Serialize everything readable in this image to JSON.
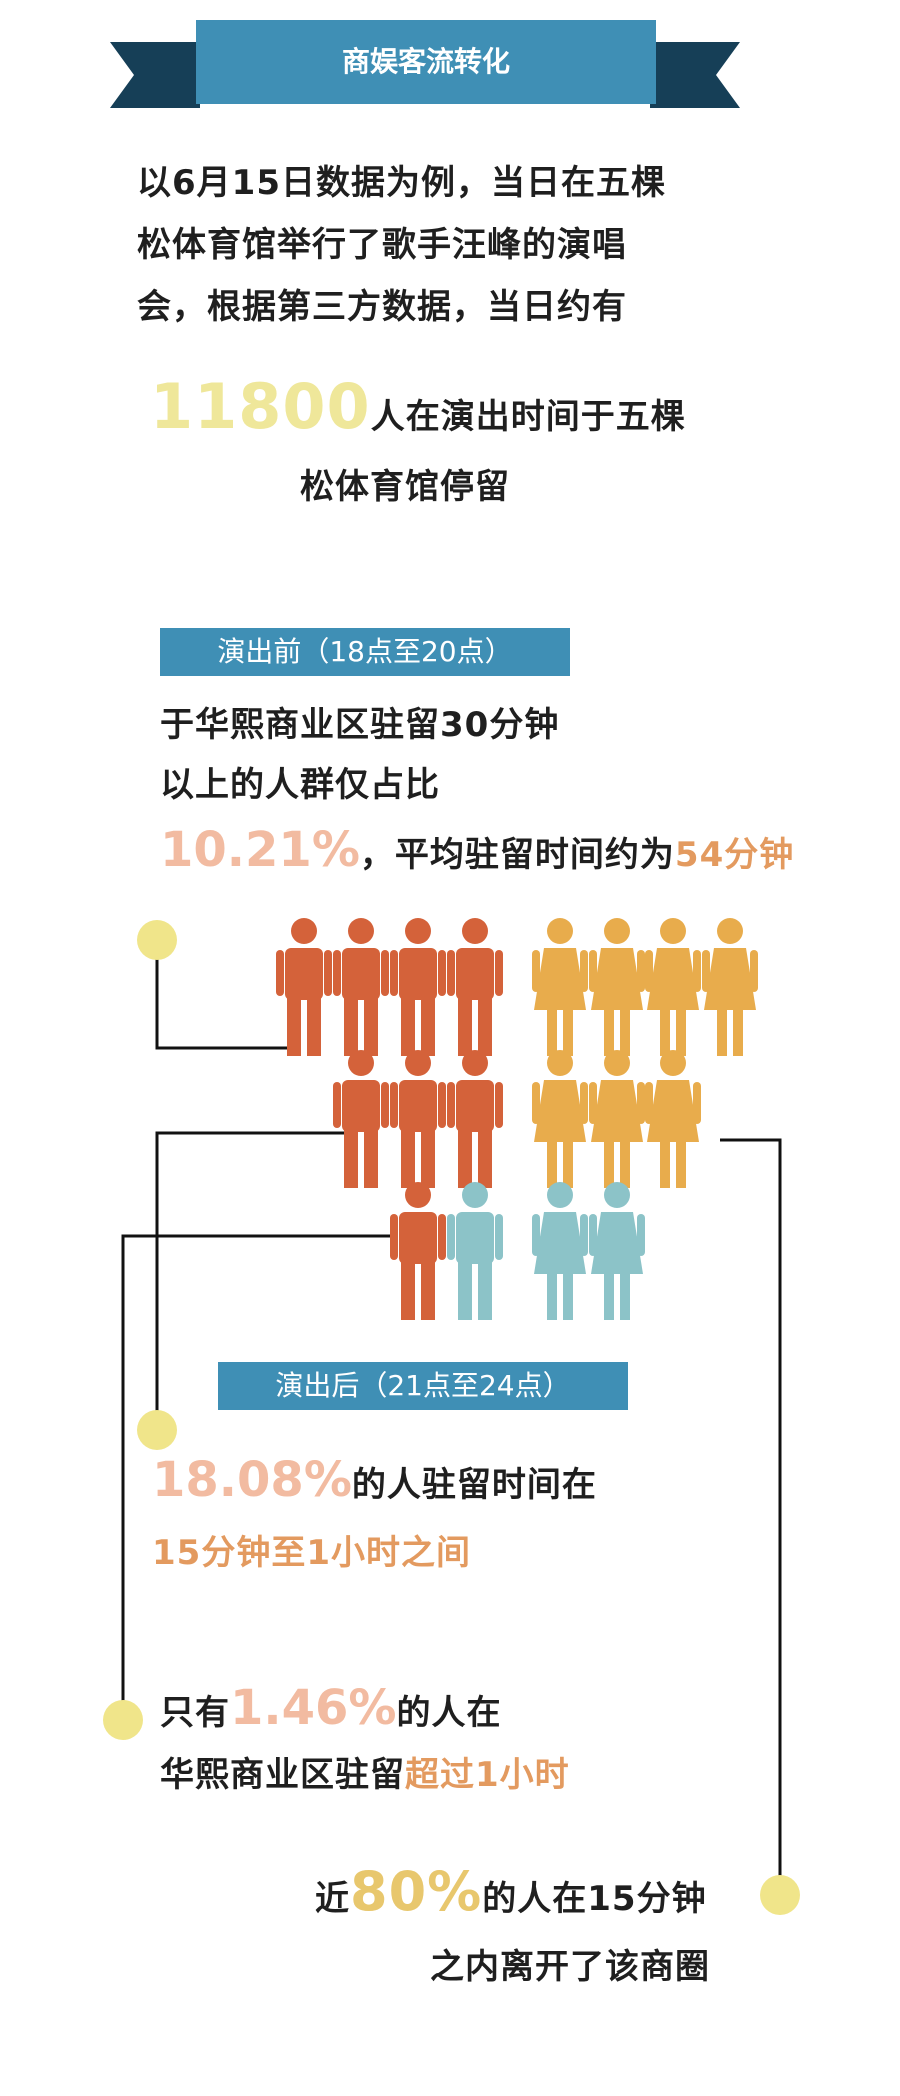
{
  "header": {
    "title": "商娱客流转化"
  },
  "intro": {
    "line1": "以6月15日数据为例，当日在五棵",
    "line2": "松体育馆举行了歌手汪峰的演唱",
    "line3": "会，根据第三方数据，当日约有"
  },
  "headline": {
    "number": "11800",
    "text1": "人在演出时间于五棵",
    "text2": "松体育馆停留"
  },
  "before": {
    "tag": "演出前（18点至20点）",
    "line1": "于华熙商业区驻留30分钟",
    "line2": "以上的人群仅占比",
    "percent": "10.21%",
    "avg_text": "，平均驻留时间约为",
    "avg_value": "54分钟"
  },
  "after": {
    "tag": "演出后（21点至24点）",
    "stat1": {
      "percent": "18.08%",
      "text": "的人驻留时间在",
      "range": "15分钟至1小时之间"
    },
    "stat2": {
      "prefix": "只有",
      "percent": "1.46%",
      "text": "的人在",
      "line2": "华熙商业区驻留",
      "emph": "超过1小时"
    },
    "stat3": {
      "prefix": "近",
      "percent": "80%",
      "text": "的人在15分钟",
      "line2": "之内离开了该商圈"
    }
  },
  "colors": {
    "accent_blue": "#3f8fb5",
    "male": "#d4623a",
    "female": "#e8ac4c",
    "teal": "#8cc3c8",
    "yellow": "#f0e58a"
  },
  "icons": {
    "male": "man-icon",
    "female": "woman-icon"
  }
}
